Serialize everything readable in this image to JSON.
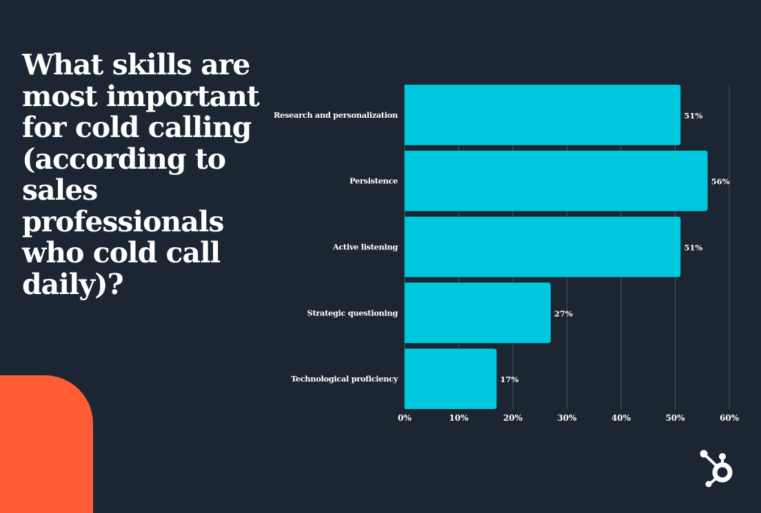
{
  "title": "What skills are most important for cold calling (according to sales professionals who cold call daily)?",
  "colors": {
    "background": "#1c2632",
    "bar": "#00c8dc",
    "accent": "#ff5c35",
    "text": "#ffffff",
    "grid": "#4a5560"
  },
  "logo": "hubspot-sprocket-icon",
  "chart_data": {
    "type": "bar",
    "orientation": "horizontal",
    "title": "What skills are most important for cold calling (according to sales professionals who cold call daily)?",
    "categories": [
      "Research and personalization",
      "Persistence",
      "Active listening",
      "Strategic questioning",
      "Technological proficiency"
    ],
    "values": [
      51,
      56,
      51,
      27,
      17
    ],
    "data_labels": [
      "51%",
      "56%",
      "51%",
      "27%",
      "17%"
    ],
    "xlim": [
      0,
      60
    ],
    "xticks": [
      0,
      10,
      20,
      30,
      40,
      50,
      60
    ],
    "xtick_labels": [
      "0%",
      "10%",
      "20%",
      "30%",
      "40%",
      "50%",
      "60%"
    ],
    "xlabel": "",
    "ylabel": "",
    "grid": "vertical"
  }
}
